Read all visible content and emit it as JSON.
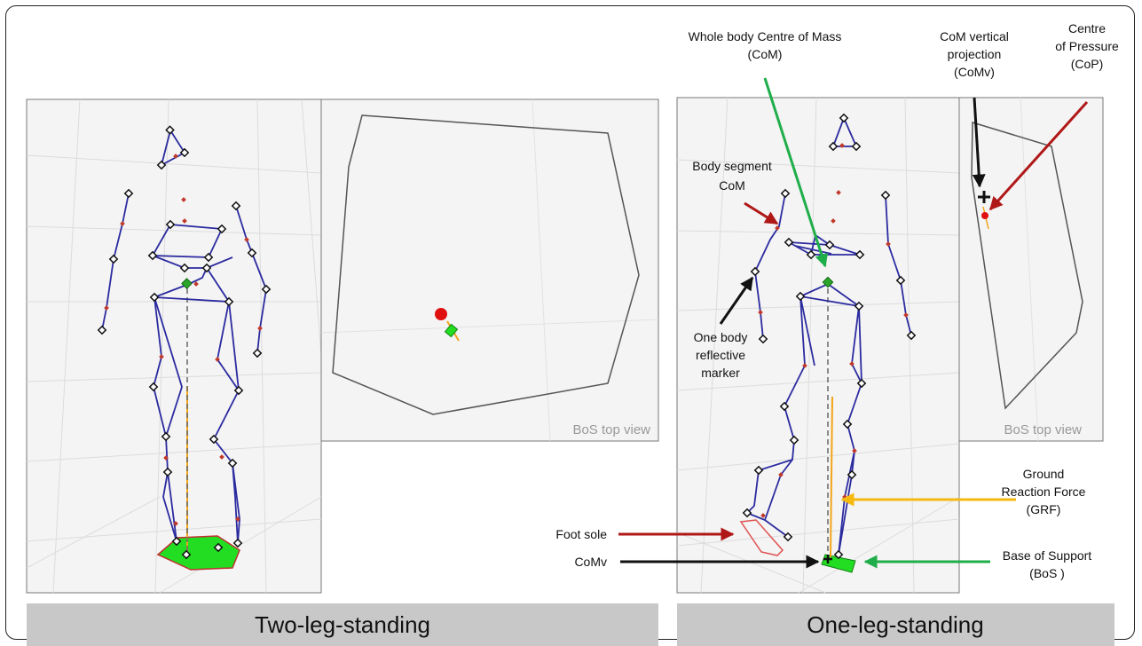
{
  "captions": {
    "left": "Two-leg-standing",
    "right": "One-leg-standing"
  },
  "view_labels": {
    "left": "BoS top view",
    "right": "BoS top view"
  },
  "annotations": {
    "whole_com": [
      "Whole body Centre of Mass",
      "(CoM)"
    ],
    "comv_proj": [
      "CoM vertical",
      "projection",
      "(CoMv)"
    ],
    "cop": [
      "Centre",
      "of Pressure",
      "(CoP)"
    ],
    "segment_com": [
      "Body segment",
      "CoM"
    ],
    "marker": [
      "One body",
      "reflective",
      "marker"
    ],
    "grf": [
      "Ground",
      "Reaction Force",
      "(GRF)"
    ],
    "foot_sole": "Foot sole",
    "comv": "CoMv",
    "bos": [
      "Base of Support",
      "(BoS )"
    ]
  },
  "colors": {
    "skeleton": "#2b2ba0",
    "segment_com": "#c0392b",
    "com": "#2aa52a",
    "cop": "#e01010",
    "grf": "#f2a51a",
    "bos_fill": "#22dd22",
    "arrow_red": "#b01818",
    "arrow_green": "#1fae4a",
    "arrow_black": "#111111",
    "arrow_yellow": "#f5b90f",
    "caption_bar": "#c8c8c8"
  }
}
